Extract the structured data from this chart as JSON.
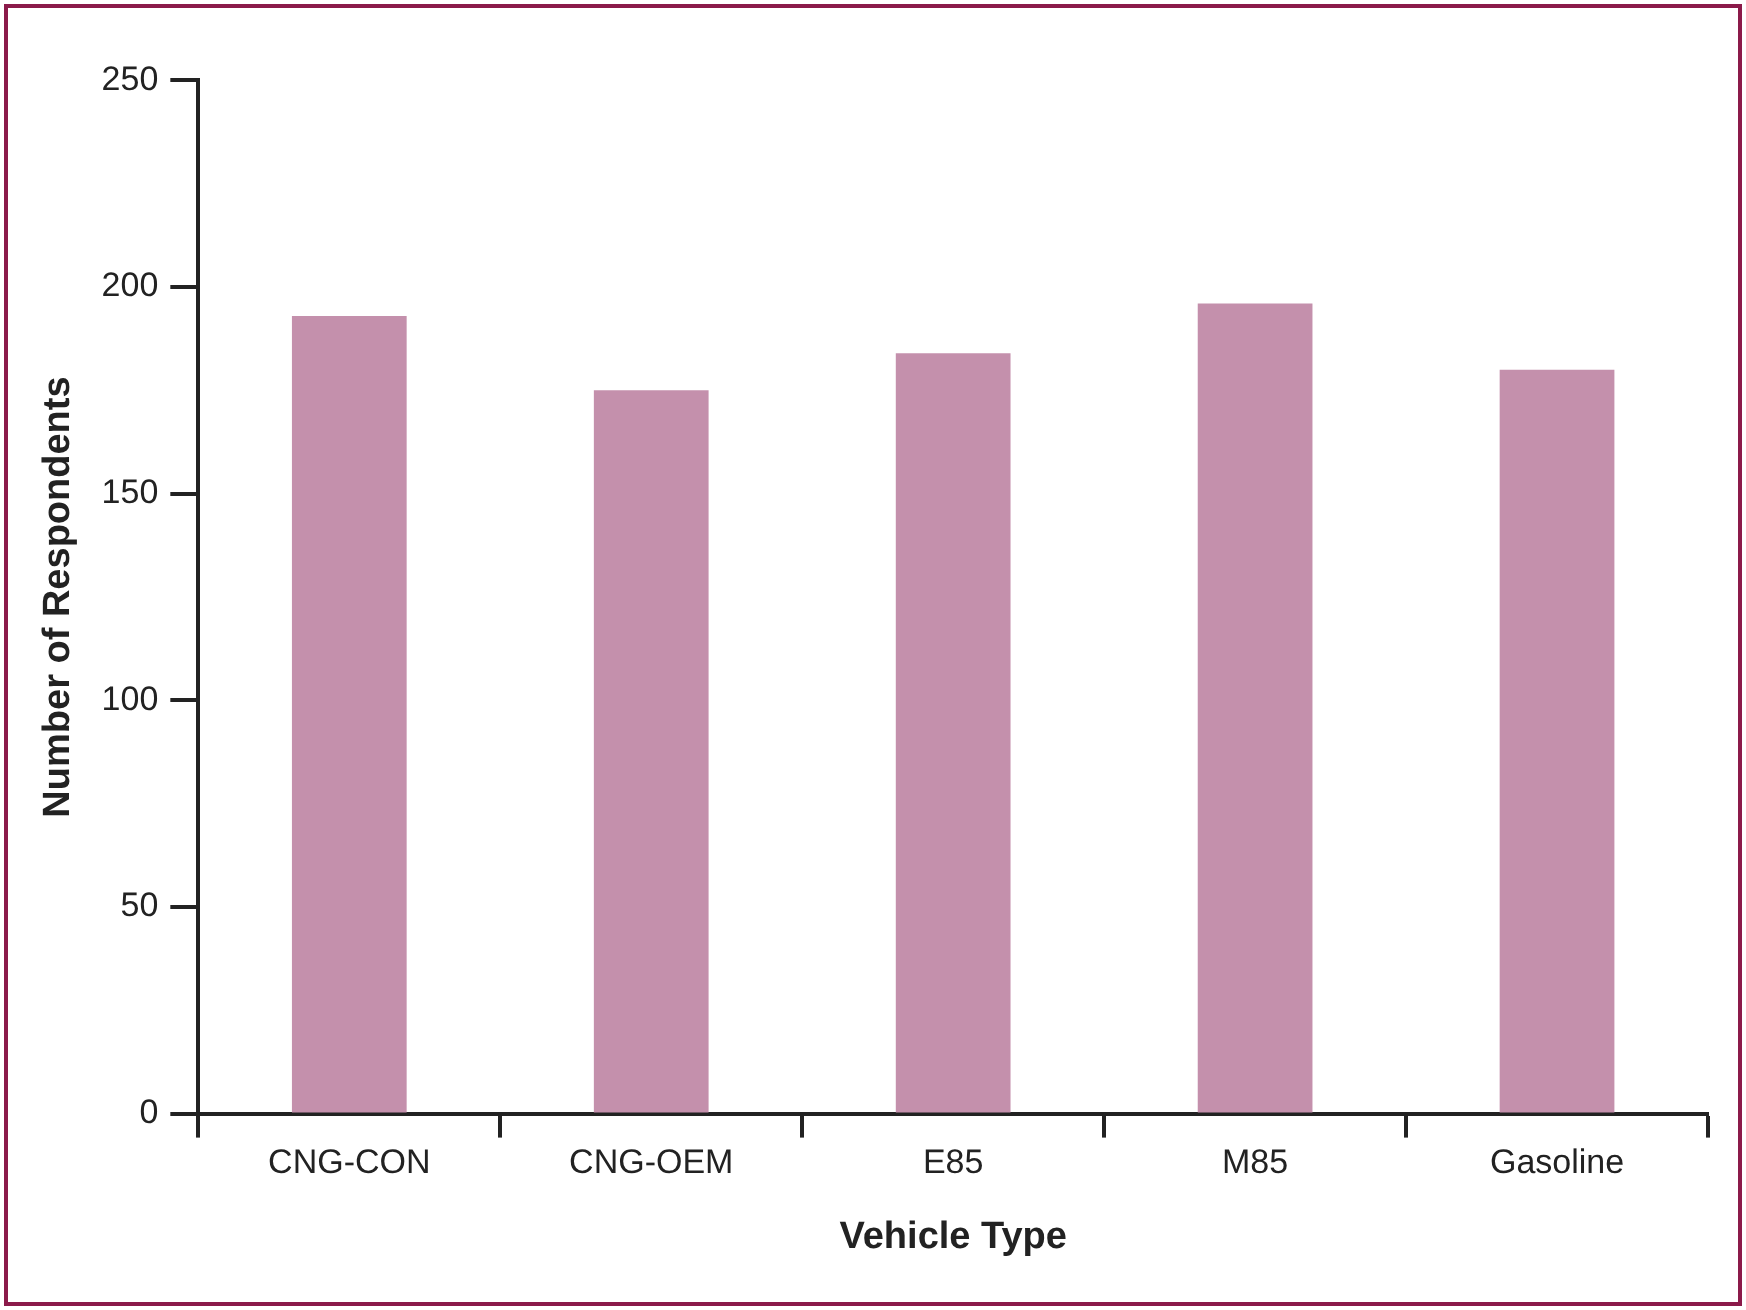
{
  "chart_data": {
    "type": "bar",
    "xlabel": "Vehicle Type",
    "ylabel": "Number of Respondents",
    "categories": [
      "CNG-CON",
      "CNG-OEM",
      "E85",
      "M85",
      "Gasoline"
    ],
    "values": [
      193,
      175,
      184,
      196,
      180
    ],
    "color": "#c490ac",
    "ylim": [
      0,
      250
    ],
    "yticks": [
      0,
      50,
      100,
      150,
      200,
      250
    ],
    "grid": false,
    "legend": false
  }
}
